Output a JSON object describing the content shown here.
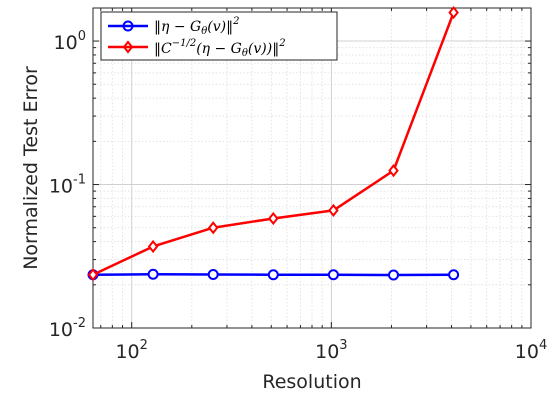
{
  "chart_data": {
    "type": "line",
    "xlabel": "Resolution",
    "ylabel": "Normalized Test Error",
    "x_scale": "log",
    "y_scale": "log",
    "xlim": [
      64,
      10000
    ],
    "ylim": [
      0.01,
      1.7
    ],
    "x_ticks": [
      {
        "value": 100,
        "base": "10",
        "exp": "2"
      },
      {
        "value": 1000,
        "base": "10",
        "exp": "3"
      },
      {
        "value": 10000,
        "base": "10",
        "exp": "4"
      }
    ],
    "y_ticks": [
      {
        "value": 0.01,
        "base": "10",
        "exp": "-2"
      },
      {
        "value": 0.1,
        "base": "10",
        "exp": "-1"
      },
      {
        "value": 1,
        "base": "10",
        "exp": "0"
      }
    ],
    "grid": true,
    "minor_grid": true,
    "legend_position": "top-left",
    "x": [
      64,
      128,
      256,
      512,
      1024,
      2048,
      4096
    ],
    "series": [
      {
        "name": "‖η − G_θ(v)‖²",
        "legend_main": "‖η − G",
        "legend_sub": "θ",
        "legend_tail": "(v)‖",
        "legend_sup": "2",
        "color": "#0000ff",
        "marker": "circle",
        "values": [
          0.0235,
          0.0237,
          0.0236,
          0.0235,
          0.0235,
          0.0234,
          0.0235
        ]
      },
      {
        "name": "‖C^(−1/2)(η − G_θ(v))‖²",
        "legend_main": "‖C",
        "legend_sup1": "−1/2",
        "legend_mid": "(η − G",
        "legend_sub": "θ",
        "legend_tail": "(v))‖",
        "legend_sup": "2",
        "color": "#ff0000",
        "marker": "diamond",
        "values": [
          0.0235,
          0.037,
          0.05,
          0.058,
          0.066,
          0.125,
          1.58
        ]
      }
    ]
  }
}
